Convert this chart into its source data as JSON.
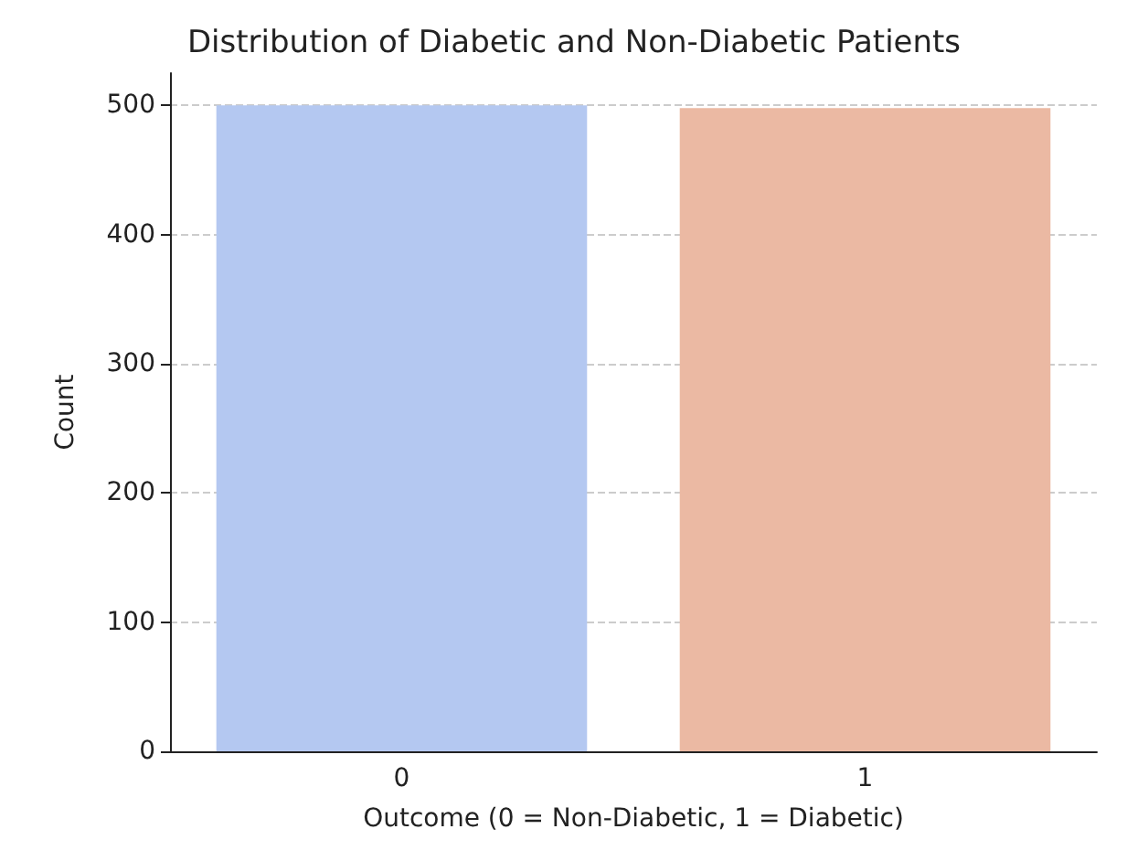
{
  "chart_data": {
    "type": "bar",
    "title": "Distribution of Diabetic and Non-Diabetic Patients",
    "xlabel": "Outcome (0 = Non-Diabetic, 1 = Diabetic)",
    "ylabel": "Count",
    "categories": [
      "0",
      "1"
    ],
    "values": [
      500,
      498
    ],
    "colors": [
      "#b4c8f1",
      "#ebb9a3"
    ],
    "ylim": [
      0,
      525
    ],
    "yticks": [
      0,
      100,
      200,
      300,
      400,
      500
    ],
    "grid": "y"
  }
}
